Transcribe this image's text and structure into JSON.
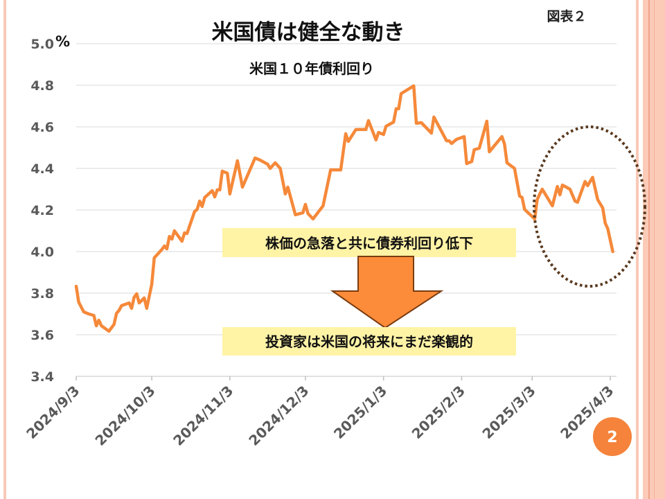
{
  "slide": {
    "title": "米国債は健全な動き",
    "figure_label": "図表２",
    "page_number": "2"
  },
  "annotations": {
    "top_box": "株価の急落と共に債券利回り低下",
    "bottom_box": "投資家は米国の将来にまだ楽観的"
  },
  "colors": {
    "line": "#f5893a",
    "arrow": "#fd8c3a",
    "arrow_border": "#7a3c10",
    "box": "#fff3a6",
    "ellipse": "#5a3a20",
    "grid": "#d9d9d9",
    "border": "#f9c9b6"
  },
  "chart_data": {
    "type": "line",
    "title": "米国１０年債利回り",
    "xlabel": "",
    "ylabel": "%",
    "y_unit": "%",
    "ylim": [
      3.4,
      5.0
    ],
    "yticks": [
      "3.4",
      "3.6",
      "3.8",
      "4.0",
      "4.2",
      "4.4",
      "4.6",
      "4.8",
      "5.0"
    ],
    "x_unit": "days since 2024/9/3",
    "xlim": [
      0,
      213
    ],
    "xticks": [
      {
        "day": 0,
        "label": "2024/9/3"
      },
      {
        "day": 30,
        "label": "2024/10/3"
      },
      {
        "day": 61,
        "label": "2024/11/3"
      },
      {
        "day": 91,
        "label": "2024/12/3"
      },
      {
        "day": 122,
        "label": "2025/1/3"
      },
      {
        "day": 153,
        "label": "2025/2/3"
      },
      {
        "day": 181,
        "label": "2025/3/3"
      },
      {
        "day": 212,
        "label": "2025/4/3"
      }
    ],
    "grid": true,
    "series": [
      {
        "name": "米国10年債利回り",
        "x": [
          0,
          1,
          3,
          5,
          7,
          8,
          9,
          10,
          13,
          15,
          16,
          17,
          18,
          21,
          22,
          23,
          24,
          25,
          27,
          28,
          30,
          31,
          34,
          35,
          36,
          37,
          38,
          39,
          42,
          43,
          44,
          47,
          48,
          49,
          50,
          51,
          54,
          55,
          56,
          57,
          58,
          60,
          61,
          64,
          66,
          71,
          73,
          76,
          77,
          79,
          81,
          83,
          84,
          87,
          90,
          91,
          92,
          94,
          98,
          101,
          105,
          107,
          108,
          111,
          115,
          116,
          119,
          120,
          122,
          123,
          126,
          127,
          128,
          129,
          134,
          135,
          137,
          141,
          142,
          147,
          148,
          149,
          151,
          154,
          155,
          157,
          158,
          160,
          163,
          164,
          169,
          170,
          171,
          174,
          176,
          177,
          178,
          182,
          183,
          184,
          185,
          189,
          191,
          192,
          193,
          196,
          198,
          199,
          202,
          203,
          205,
          207,
          209,
          210,
          211,
          213
        ],
        "y": [
          3.833,
          3.757,
          3.71,
          3.7,
          3.693,
          3.643,
          3.67,
          3.643,
          3.617,
          3.65,
          3.703,
          3.717,
          3.74,
          3.753,
          3.727,
          3.78,
          3.797,
          3.753,
          3.777,
          3.727,
          3.843,
          3.97,
          4.01,
          4.027,
          4.013,
          4.073,
          4.06,
          4.1,
          4.05,
          4.09,
          4.087,
          4.193,
          4.203,
          4.243,
          4.217,
          4.26,
          4.293,
          4.263,
          4.297,
          4.297,
          4.387,
          4.377,
          4.277,
          4.437,
          4.31,
          4.45,
          4.44,
          4.42,
          4.4,
          4.427,
          4.4,
          4.277,
          4.31,
          4.177,
          4.187,
          4.227,
          4.183,
          4.157,
          4.22,
          4.393,
          4.393,
          4.567,
          4.53,
          4.587,
          4.587,
          4.63,
          4.537,
          4.573,
          4.563,
          4.603,
          4.623,
          4.687,
          4.687,
          4.76,
          4.797,
          4.617,
          4.62,
          4.57,
          4.647,
          4.533,
          4.533,
          4.52,
          4.54,
          4.553,
          4.423,
          4.433,
          4.49,
          4.497,
          4.627,
          4.48,
          4.553,
          4.517,
          4.427,
          4.4,
          4.267,
          4.26,
          4.203,
          4.157,
          4.25,
          4.277,
          4.3,
          4.22,
          4.313,
          4.273,
          4.32,
          4.3,
          4.243,
          4.237,
          4.337,
          4.317,
          4.357,
          4.25,
          4.21,
          4.137,
          4.11,
          4.0
        ]
      }
    ]
  }
}
